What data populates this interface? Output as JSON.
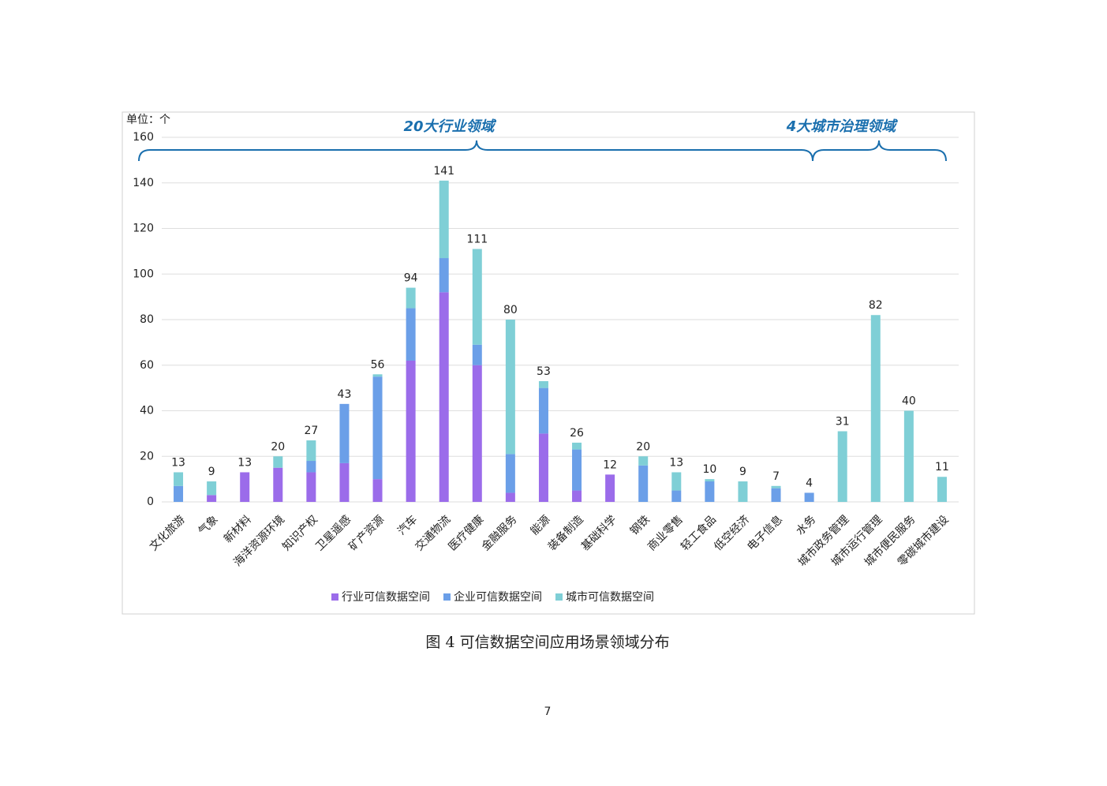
{
  "chart_data": {
    "type": "stacked_bar",
    "unit_label": "单位：个",
    "annotations": [
      "20大行业领域",
      "4大城市治理领域"
    ],
    "categories": [
      "文化旅游",
      "气象",
      "新材料",
      "海洋资源环境",
      "知识产权",
      "卫星遥感",
      "矿产资源",
      "汽车",
      "交通物流",
      "医疗健康",
      "金融服务",
      "能源",
      "装备制造",
      "基础科学",
      "钢铁",
      "商业零售",
      "轻工食品",
      "低空经济",
      "电子信息",
      "水务",
      "城市政务管理",
      "城市运行管理",
      "城市便民服务",
      "零碳城市建设"
    ],
    "series": [
      {
        "name": "行业可信数据空间",
        "color": "#9b6cea",
        "values": [
          0,
          3,
          13,
          15,
          13,
          17,
          10,
          62,
          92,
          60,
          4,
          30,
          5,
          12,
          0,
          0,
          0,
          0,
          0,
          0,
          0,
          0,
          0,
          0
        ]
      },
      {
        "name": "企业可信数据空间",
        "color": "#6b9fe8",
        "values": [
          7,
          0,
          0,
          0,
          5,
          26,
          45,
          23,
          15,
          9,
          17,
          20,
          18,
          0,
          16,
          5,
          9,
          0,
          6,
          4,
          0,
          0,
          0,
          0
        ]
      },
      {
        "name": "城市可信数据空间",
        "color": "#7fcfd6",
        "values": [
          6,
          6,
          0,
          5,
          9,
          0,
          1,
          9,
          34,
          42,
          59,
          3,
          3,
          0,
          4,
          8,
          1,
          9,
          1,
          0,
          31,
          82,
          40,
          11
        ]
      }
    ],
    "total_labels": [
      13,
      9,
      13,
      20,
      27,
      43,
      56,
      94,
      141,
      111,
      80,
      53,
      26,
      12,
      20,
      13,
      10,
      9,
      7,
      4,
      31,
      82,
      40,
      11
    ],
    "ylim": [
      0,
      160
    ],
    "yticks": [
      0,
      20,
      40,
      60,
      80,
      100,
      120,
      140,
      160
    ],
    "grid": true
  },
  "caption": "图 4 可信数据空间应用场景领域分布",
  "page_number": "7"
}
